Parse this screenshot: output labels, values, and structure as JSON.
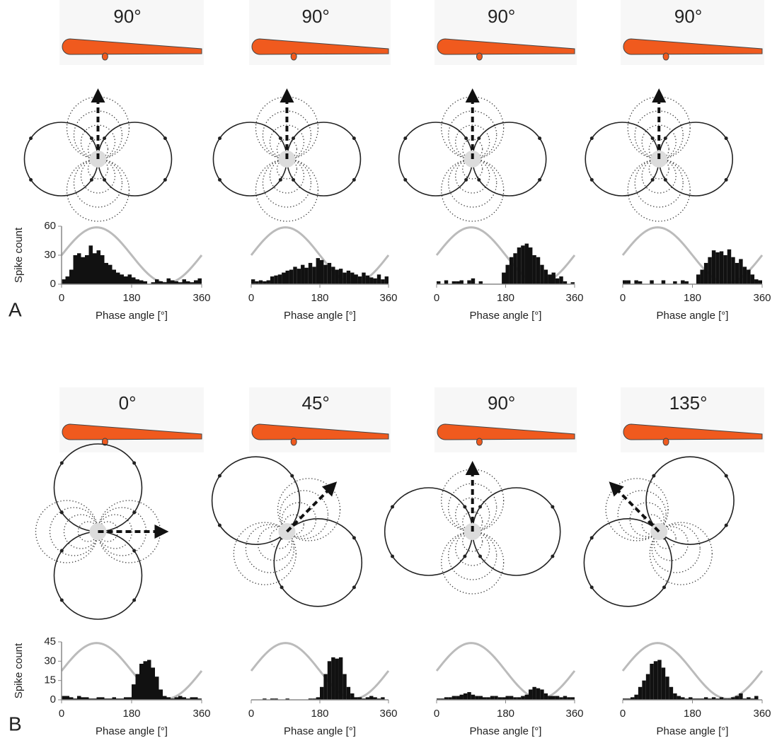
{
  "panel_labels": [
    "A",
    "B"
  ],
  "chart_data": [
    {
      "type": "histogram",
      "title": "90°",
      "ylabel": "Spike count",
      "xlabel": "Phase angle [°]",
      "color": "#111111",
      "bins": [
        0,
        10,
        20,
        30,
        40,
        50,
        60,
        70,
        80,
        90,
        100,
        110,
        120,
        130,
        140,
        150,
        160,
        170,
        180,
        190,
        200,
        210,
        220,
        230,
        240,
        250,
        260,
        270,
        280,
        290,
        300,
        310,
        320,
        330,
        340,
        350,
        360
      ],
      "values": [
        5,
        8,
        15,
        30,
        32,
        28,
        30,
        40,
        32,
        35,
        30,
        22,
        20,
        15,
        12,
        10,
        8,
        10,
        7,
        5,
        4,
        3,
        0,
        2,
        5,
        3,
        2,
        6,
        4,
        3,
        2,
        5,
        3,
        2,
        4,
        6
      ],
      "xlim": [
        0,
        360
      ],
      "xticks": [
        0,
        180,
        360
      ],
      "ylim": [
        0,
        60
      ],
      "yticks": [
        0,
        30,
        60
      ]
    },
    {
      "type": "histogram",
      "title": "90°",
      "xlabel": "Phase angle [°]",
      "color": "#111111",
      "bins": [
        0,
        10,
        20,
        30,
        40,
        50,
        60,
        70,
        80,
        90,
        100,
        110,
        120,
        130,
        140,
        150,
        160,
        170,
        180,
        190,
        200,
        210,
        220,
        230,
        240,
        250,
        260,
        270,
        280,
        290,
        300,
        310,
        320,
        330,
        340,
        350,
        360
      ],
      "values": [
        5,
        3,
        4,
        3,
        4,
        8,
        9,
        10,
        12,
        14,
        15,
        18,
        16,
        20,
        17,
        22,
        18,
        27,
        25,
        20,
        22,
        18,
        15,
        16,
        12,
        14,
        12,
        10,
        8,
        12,
        9,
        7,
        6,
        10,
        5,
        8
      ],
      "xlim": [
        0,
        360
      ],
      "xticks": [
        0,
        180,
        360
      ],
      "ylim": [
        0,
        60
      ]
    },
    {
      "type": "histogram",
      "title": "90°",
      "xlabel": "Phase angle [°]",
      "color": "#111111",
      "bins": [
        0,
        10,
        20,
        30,
        40,
        50,
        60,
        70,
        80,
        90,
        100,
        110,
        120,
        130,
        140,
        150,
        160,
        170,
        180,
        190,
        200,
        210,
        220,
        230,
        240,
        250,
        260,
        270,
        280,
        290,
        300,
        310,
        320,
        330,
        340,
        350,
        360
      ],
      "values": [
        3,
        0,
        4,
        0,
        3,
        3,
        4,
        0,
        4,
        6,
        0,
        3,
        0,
        0,
        0,
        0,
        0,
        12,
        20,
        28,
        32,
        38,
        40,
        42,
        38,
        30,
        28,
        20,
        15,
        10,
        12,
        6,
        8,
        3,
        0,
        2
      ],
      "xlim": [
        0,
        360
      ],
      "xticks": [
        0,
        180,
        360
      ],
      "ylim": [
        0,
        60
      ]
    },
    {
      "type": "histogram",
      "title": "90°",
      "xlabel": "Phase angle [°]",
      "color": "#111111",
      "bins": [
        0,
        10,
        20,
        30,
        40,
        50,
        60,
        70,
        80,
        90,
        100,
        110,
        120,
        130,
        140,
        150,
        160,
        170,
        180,
        190,
        200,
        210,
        220,
        230,
        240,
        250,
        260,
        270,
        280,
        290,
        300,
        310,
        320,
        330,
        340,
        350,
        360
      ],
      "values": [
        4,
        4,
        0,
        4,
        3,
        0,
        0,
        4,
        0,
        0,
        4,
        0,
        0,
        3,
        0,
        4,
        3,
        0,
        0,
        10,
        15,
        22,
        28,
        35,
        33,
        34,
        30,
        36,
        28,
        22,
        26,
        18,
        15,
        10,
        5,
        4
      ],
      "xlim": [
        0,
        360
      ],
      "xticks": [
        0,
        180,
        360
      ],
      "ylim": [
        0,
        60
      ]
    },
    {
      "type": "histogram",
      "title": "0°",
      "ylabel": "Spike count",
      "xlabel": "Phase angle [°]",
      "color": "#111111",
      "bins": [
        0,
        10,
        20,
        30,
        40,
        50,
        60,
        70,
        80,
        90,
        100,
        110,
        120,
        130,
        140,
        150,
        160,
        170,
        180,
        190,
        200,
        210,
        220,
        230,
        240,
        250,
        260,
        270,
        280,
        290,
        300,
        310,
        320,
        330,
        340,
        350,
        360
      ],
      "values": [
        3,
        3,
        2,
        1,
        3,
        2,
        2,
        1,
        1,
        2,
        2,
        1,
        1,
        2,
        1,
        1,
        2,
        2,
        12,
        20,
        28,
        30,
        31,
        25,
        18,
        8,
        3,
        2,
        1,
        2,
        3,
        2,
        1,
        2,
        2,
        1
      ],
      "xlim": [
        0,
        360
      ],
      "xticks": [
        0,
        180,
        360
      ],
      "ylim": [
        0,
        45
      ],
      "yticks": [
        0,
        15,
        30,
        45
      ]
    },
    {
      "type": "histogram",
      "title": "45°",
      "xlabel": "Phase angle [°]",
      "color": "#111111",
      "bins": [
        0,
        10,
        20,
        30,
        40,
        50,
        60,
        70,
        80,
        90,
        100,
        110,
        120,
        130,
        140,
        150,
        160,
        170,
        180,
        190,
        200,
        210,
        220,
        230,
        240,
        250,
        260,
        270,
        280,
        290,
        300,
        310,
        320,
        330,
        340,
        350,
        360
      ],
      "values": [
        0,
        0,
        0,
        1,
        0,
        1,
        1,
        0,
        0,
        1,
        0,
        0,
        0,
        0,
        0,
        1,
        1,
        2,
        10,
        20,
        30,
        33,
        32,
        33,
        20,
        10,
        5,
        2,
        2,
        1,
        2,
        3,
        2,
        1,
        2,
        0
      ],
      "xlim": [
        0,
        360
      ],
      "xticks": [
        0,
        180,
        360
      ],
      "ylim": [
        0,
        45
      ]
    },
    {
      "type": "histogram",
      "title": "90°",
      "xlabel": "Phase angle [°]",
      "color": "#111111",
      "bins": [
        0,
        10,
        20,
        30,
        40,
        50,
        60,
        70,
        80,
        90,
        100,
        110,
        120,
        130,
        140,
        150,
        160,
        170,
        180,
        190,
        200,
        210,
        220,
        230,
        240,
        250,
        260,
        270,
        280,
        290,
        300,
        310,
        320,
        330,
        340,
        350,
        360
      ],
      "values": [
        1,
        1,
        2,
        2,
        3,
        3,
        4,
        5,
        6,
        4,
        3,
        3,
        2,
        2,
        3,
        3,
        2,
        2,
        3,
        3,
        2,
        2,
        3,
        4,
        8,
        10,
        9,
        8,
        5,
        3,
        3,
        3,
        2,
        3,
        2,
        2
      ],
      "xlim": [
        0,
        360
      ],
      "xticks": [
        0,
        180,
        360
      ],
      "ylim": [
        0,
        45
      ]
    },
    {
      "type": "histogram",
      "title": "135°",
      "xlabel": "Phase angle [°]",
      "color": "#111111",
      "bins": [
        0,
        10,
        20,
        30,
        40,
        50,
        60,
        70,
        80,
        90,
        100,
        110,
        120,
        130,
        140,
        150,
        160,
        170,
        180,
        190,
        200,
        210,
        220,
        230,
        240,
        250,
        260,
        270,
        280,
        290,
        300,
        310,
        320,
        330,
        340,
        350,
        360
      ],
      "values": [
        1,
        1,
        2,
        4,
        10,
        15,
        20,
        28,
        30,
        31,
        25,
        18,
        10,
        5,
        3,
        2,
        1,
        2,
        1,
        1,
        1,
        2,
        1,
        2,
        1,
        2,
        1,
        1,
        2,
        3,
        5,
        1,
        2,
        1,
        3,
        0
      ],
      "xlim": [
        0,
        360
      ],
      "xticks": [
        0,
        180,
        360
      ],
      "ylim": [
        0,
        45
      ]
    }
  ]
}
